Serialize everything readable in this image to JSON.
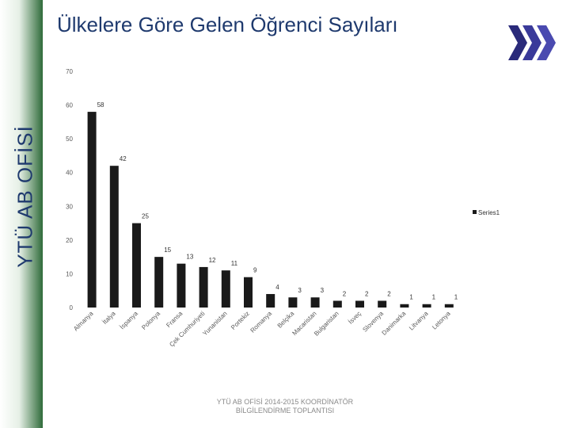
{
  "sidebar": {
    "label": "YTÜ AB OFİSİ"
  },
  "slide": {
    "title": "Ülkelere Göre Gelen Öğrenci Sayıları",
    "footer_line1": "YTÜ AB OFİSİ 2014-2015 KOORDİNATÖR",
    "footer_line2": "BİLGİLENDİRME TOPLANTISI"
  },
  "icons": {
    "nav": "double-chevron-right-icon"
  },
  "colors": {
    "bar": "#1a1a1a",
    "title": "#1f3a6e",
    "axis_text": "#595959",
    "sidebar_dark": "#2f6b3a"
  },
  "chart_data": {
    "type": "bar",
    "categories": [
      "Almanya",
      "İtalya",
      "İspanya",
      "Polonya",
      "Fransa",
      "Çek Cumhuriyeti",
      "Yunanistan",
      "Portekiz",
      "Romanya",
      "Belçika",
      "Macaristan",
      "Bulgaristan",
      "İsveç",
      "Slovenya",
      "Danimarka",
      "Litvanya",
      "Letonya"
    ],
    "series": [
      {
        "name": "Series1",
        "values": [
          58,
          42,
          25,
          15,
          13,
          12,
          11,
          9,
          4,
          3,
          3,
          2,
          2,
          2,
          1,
          1,
          1
        ]
      }
    ],
    "ylim": [
      0,
      70
    ],
    "yticks": [
      "0",
      "10",
      "20",
      "30",
      "40",
      "50",
      "60",
      "70"
    ],
    "grid": false,
    "legend_position": "right"
  }
}
